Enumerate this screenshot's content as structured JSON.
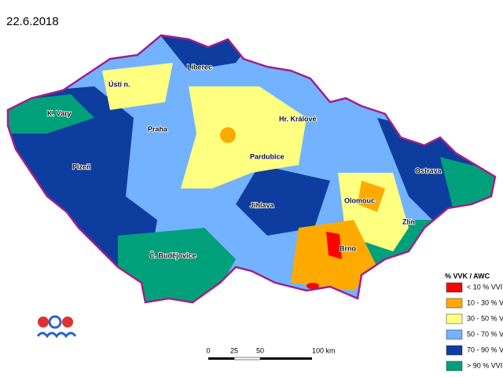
{
  "date": "22.6.2018",
  "cities": [
    "Ústí n.",
    "Liberec",
    "Hr. Králové",
    "K. Vary",
    "Praha",
    "Pardubice",
    "Plzeň",
    "Ostrava",
    "Olomouc",
    "Jihlava",
    "Zlín",
    "Brno",
    "Č. Budějovice"
  ],
  "legend": {
    "title": "% VVK / AWC",
    "items": [
      {
        "label": "< 10 % VVI",
        "color": "#ff0000"
      },
      {
        "label": "10 - 30 % V",
        "color": "#ffaa00"
      },
      {
        "label": "30 - 50 % V",
        "color": "#ffff80"
      },
      {
        "label": "50 - 70 % V",
        "color": "#73b2ff"
      },
      {
        "label": "70 - 90 % V",
        "color": "#0d3d9e"
      },
      {
        "label": "> 90 % VVI",
        "color": "#00a07a"
      }
    ]
  },
  "scale_bar": {
    "labels": [
      "0",
      "25",
      "50",
      "100 km"
    ]
  }
}
